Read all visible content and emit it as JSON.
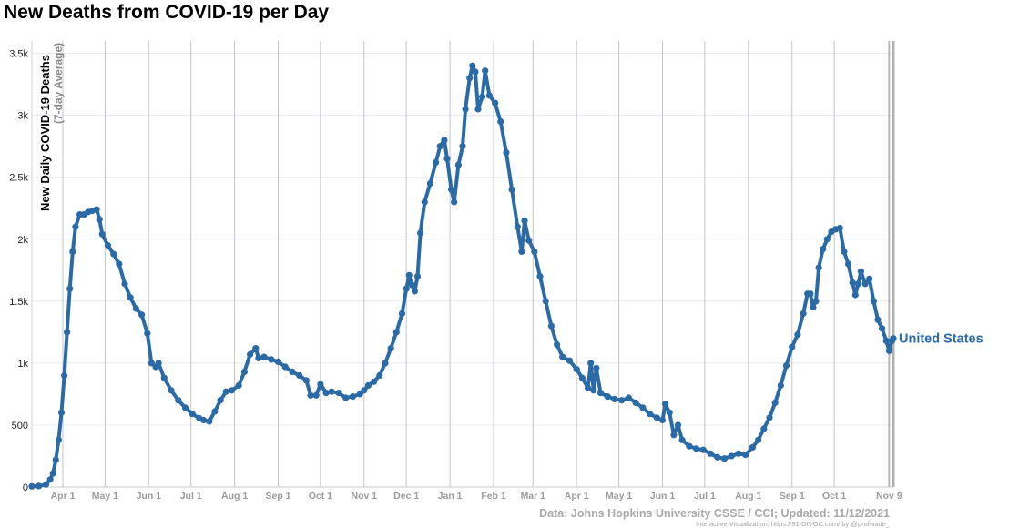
{
  "title": "New Deaths from COVID-19 per Day",
  "source": "Data: Johns Hopkins University CSSE / CCI; Updated: 11/12/2021",
  "credit": "Interactive Visualization: https://91-DIVOC.com/ by @profwade_",
  "chart_data": {
    "type": "line",
    "title": "New Deaths from COVID-19 per Day",
    "ylabel": "New Daily COVID-19 Deaths",
    "ylabel_sub": "(7-day Average)",
    "xlabel": "",
    "ylim": [
      0,
      3600
    ],
    "yticks": [
      0,
      500,
      1000,
      1500,
      2000,
      2500,
      3000,
      3500
    ],
    "ytick_labels": [
      "0",
      "500",
      "1k",
      "1.5k",
      "2k",
      "2.5k",
      "3k",
      "3.5k"
    ],
    "xrange": [
      "2020-03-10",
      "2021-11-12"
    ],
    "xticks": [
      {
        "date": "2020-04-01",
        "label": "Apr 1"
      },
      {
        "date": "2020-05-01",
        "label": "May 1"
      },
      {
        "date": "2020-06-01",
        "label": "Jun 1"
      },
      {
        "date": "2020-07-01",
        "label": "Jul 1"
      },
      {
        "date": "2020-08-01",
        "label": "Aug 1"
      },
      {
        "date": "2020-09-01",
        "label": "Sep 1"
      },
      {
        "date": "2020-10-01",
        "label": "Oct 1"
      },
      {
        "date": "2020-11-01",
        "label": "Nov 1"
      },
      {
        "date": "2020-12-01",
        "label": "Dec 1"
      },
      {
        "date": "2021-01-01",
        "label": "Jan 1"
      },
      {
        "date": "2021-02-01",
        "label": "Feb 1"
      },
      {
        "date": "2021-03-01",
        "label": "Mar 1"
      },
      {
        "date": "2021-04-01",
        "label": "Apr 1"
      },
      {
        "date": "2021-05-01",
        "label": "May 1"
      },
      {
        "date": "2021-06-01",
        "label": "Jun 1"
      },
      {
        "date": "2021-07-01",
        "label": "Jul 1"
      },
      {
        "date": "2021-08-01",
        "label": "Aug 1"
      },
      {
        "date": "2021-09-01",
        "label": "Sep 1"
      },
      {
        "date": "2021-10-01",
        "label": "Oct 1"
      },
      {
        "date": "2021-11-09",
        "label": "Nov 9"
      }
    ],
    "grid": true,
    "series": [
      {
        "name": "United States",
        "color": "#2a6aa6",
        "points": [
          [
            "2020-03-10",
            5
          ],
          [
            "2020-03-15",
            8
          ],
          [
            "2020-03-20",
            20
          ],
          [
            "2020-03-23",
            60
          ],
          [
            "2020-03-25",
            110
          ],
          [
            "2020-03-27",
            220
          ],
          [
            "2020-03-29",
            380
          ],
          [
            "2020-03-31",
            600
          ],
          [
            "2020-04-02",
            900
          ],
          [
            "2020-04-04",
            1250
          ],
          [
            "2020-04-06",
            1600
          ],
          [
            "2020-04-08",
            1900
          ],
          [
            "2020-04-10",
            2100
          ],
          [
            "2020-04-13",
            2200
          ],
          [
            "2020-04-16",
            2200
          ],
          [
            "2020-04-19",
            2220
          ],
          [
            "2020-04-22",
            2230
          ],
          [
            "2020-04-25",
            2240
          ],
          [
            "2020-04-27",
            2160
          ],
          [
            "2020-04-29",
            2040
          ],
          [
            "2020-05-03",
            1950
          ],
          [
            "2020-05-07",
            1880
          ],
          [
            "2020-05-11",
            1800
          ],
          [
            "2020-05-15",
            1640
          ],
          [
            "2020-05-19",
            1530
          ],
          [
            "2020-05-23",
            1440
          ],
          [
            "2020-05-27",
            1390
          ],
          [
            "2020-05-31",
            1240
          ],
          [
            "2020-06-03",
            1000
          ],
          [
            "2020-06-06",
            970
          ],
          [
            "2020-06-08",
            1000
          ],
          [
            "2020-06-12",
            880
          ],
          [
            "2020-06-17",
            780
          ],
          [
            "2020-06-22",
            700
          ],
          [
            "2020-06-27",
            640
          ],
          [
            "2020-07-02",
            590
          ],
          [
            "2020-07-07",
            555
          ],
          [
            "2020-07-10",
            540
          ],
          [
            "2020-07-14",
            530
          ],
          [
            "2020-07-18",
            610
          ],
          [
            "2020-07-22",
            700
          ],
          [
            "2020-07-26",
            770
          ],
          [
            "2020-07-30",
            780
          ],
          [
            "2020-08-04",
            820
          ],
          [
            "2020-08-08",
            930
          ],
          [
            "2020-08-12",
            1070
          ],
          [
            "2020-08-16",
            1120
          ],
          [
            "2020-08-18",
            1040
          ],
          [
            "2020-08-22",
            1050
          ],
          [
            "2020-08-27",
            1030
          ],
          [
            "2020-09-01",
            1010
          ],
          [
            "2020-09-06",
            970
          ],
          [
            "2020-09-11",
            930
          ],
          [
            "2020-09-16",
            900
          ],
          [
            "2020-09-21",
            860
          ],
          [
            "2020-09-24",
            740
          ],
          [
            "2020-09-28",
            740
          ],
          [
            "2020-10-01",
            830
          ],
          [
            "2020-10-05",
            760
          ],
          [
            "2020-10-09",
            770
          ],
          [
            "2020-10-14",
            760
          ],
          [
            "2020-10-19",
            720
          ],
          [
            "2020-10-24",
            730
          ],
          [
            "2020-10-29",
            750
          ],
          [
            "2020-11-01",
            780
          ],
          [
            "2020-11-04",
            820
          ],
          [
            "2020-11-08",
            850
          ],
          [
            "2020-11-12",
            900
          ],
          [
            "2020-11-16",
            1000
          ],
          [
            "2020-11-20",
            1120
          ],
          [
            "2020-11-24",
            1250
          ],
          [
            "2020-11-28",
            1400
          ],
          [
            "2020-12-01",
            1600
          ],
          [
            "2020-12-03",
            1710
          ],
          [
            "2020-12-05",
            1630
          ],
          [
            "2020-12-07",
            1580
          ],
          [
            "2020-12-09",
            1700
          ],
          [
            "2020-12-11",
            2050
          ],
          [
            "2020-12-14",
            2300
          ],
          [
            "2020-12-18",
            2450
          ],
          [
            "2020-12-22",
            2620
          ],
          [
            "2020-12-25",
            2750
          ],
          [
            "2020-12-28",
            2800
          ],
          [
            "2020-12-30",
            2650
          ],
          [
            "2021-01-02",
            2400
          ],
          [
            "2021-01-04",
            2300
          ],
          [
            "2021-01-07",
            2600
          ],
          [
            "2021-01-10",
            2750
          ],
          [
            "2021-01-12",
            3050
          ],
          [
            "2021-01-15",
            3300
          ],
          [
            "2021-01-17",
            3400
          ],
          [
            "2021-01-19",
            3350
          ],
          [
            "2021-01-21",
            3050
          ],
          [
            "2021-01-24",
            3150
          ],
          [
            "2021-01-26",
            3360
          ],
          [
            "2021-01-29",
            3160
          ],
          [
            "2021-02-02",
            3100
          ],
          [
            "2021-02-06",
            2950
          ],
          [
            "2021-02-10",
            2700
          ],
          [
            "2021-02-14",
            2400
          ],
          [
            "2021-02-18",
            2100
          ],
          [
            "2021-02-21",
            1900
          ],
          [
            "2021-02-23",
            2150
          ],
          [
            "2021-02-26",
            1990
          ],
          [
            "2021-03-02",
            1900
          ],
          [
            "2021-03-06",
            1700
          ],
          [
            "2021-03-10",
            1500
          ],
          [
            "2021-03-14",
            1300
          ],
          [
            "2021-03-18",
            1150
          ],
          [
            "2021-03-22",
            1050
          ],
          [
            "2021-03-27",
            1020
          ],
          [
            "2021-04-01",
            950
          ],
          [
            "2021-04-05",
            880
          ],
          [
            "2021-04-09",
            800
          ],
          [
            "2021-04-11",
            1000
          ],
          [
            "2021-04-13",
            780
          ],
          [
            "2021-04-15",
            960
          ],
          [
            "2021-04-18",
            760
          ],
          [
            "2021-04-23",
            730
          ],
          [
            "2021-04-28",
            710
          ],
          [
            "2021-05-03",
            700
          ],
          [
            "2021-05-08",
            720
          ],
          [
            "2021-05-13",
            680
          ],
          [
            "2021-05-18",
            640
          ],
          [
            "2021-05-23",
            590
          ],
          [
            "2021-05-28",
            560
          ],
          [
            "2021-06-01",
            540
          ],
          [
            "2021-06-03",
            670
          ],
          [
            "2021-06-06",
            600
          ],
          [
            "2021-06-09",
            420
          ],
          [
            "2021-06-12",
            500
          ],
          [
            "2021-06-15",
            380
          ],
          [
            "2021-06-20",
            330
          ],
          [
            "2021-06-25",
            310
          ],
          [
            "2021-06-30",
            300
          ],
          [
            "2021-07-05",
            270
          ],
          [
            "2021-07-10",
            240
          ],
          [
            "2021-07-15",
            230
          ],
          [
            "2021-07-20",
            250
          ],
          [
            "2021-07-25",
            270
          ],
          [
            "2021-07-30",
            260
          ],
          [
            "2021-08-04",
            320
          ],
          [
            "2021-08-08",
            380
          ],
          [
            "2021-08-12",
            470
          ],
          [
            "2021-08-16",
            560
          ],
          [
            "2021-08-20",
            680
          ],
          [
            "2021-08-24",
            820
          ],
          [
            "2021-08-28",
            980
          ],
          [
            "2021-09-01",
            1130
          ],
          [
            "2021-09-05",
            1230
          ],
          [
            "2021-09-09",
            1400
          ],
          [
            "2021-09-12",
            1560
          ],
          [
            "2021-09-14",
            1560
          ],
          [
            "2021-09-16",
            1450
          ],
          [
            "2021-09-18",
            1500
          ],
          [
            "2021-09-20",
            1770
          ],
          [
            "2021-09-23",
            1920
          ],
          [
            "2021-09-26",
            2000
          ],
          [
            "2021-09-29",
            2060
          ],
          [
            "2021-10-02",
            2080
          ],
          [
            "2021-10-05",
            2090
          ],
          [
            "2021-10-08",
            1900
          ],
          [
            "2021-10-11",
            1800
          ],
          [
            "2021-10-14",
            1650
          ],
          [
            "2021-10-16",
            1550
          ],
          [
            "2021-10-18",
            1640
          ],
          [
            "2021-10-20",
            1740
          ],
          [
            "2021-10-23",
            1640
          ],
          [
            "2021-10-26",
            1680
          ],
          [
            "2021-10-29",
            1500
          ],
          [
            "2021-11-01",
            1350
          ],
          [
            "2021-11-04",
            1280
          ],
          [
            "2021-11-07",
            1180
          ],
          [
            "2021-11-09",
            1100
          ],
          [
            "2021-11-11",
            1180
          ],
          [
            "2021-11-12",
            1200
          ]
        ]
      }
    ]
  }
}
